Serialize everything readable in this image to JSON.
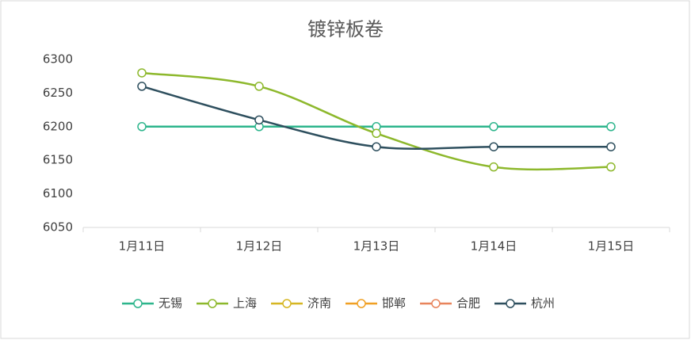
{
  "chart_data": {
    "type": "line",
    "title": "镀锌板卷",
    "categories": [
      "1月11日",
      "1月12日",
      "1月13日",
      "1月14日",
      "1月15日"
    ],
    "series": [
      {
        "name": "无锡",
        "color": "#2db58c",
        "values": [
          6200,
          6200,
          6200,
          6200,
          6200
        ]
      },
      {
        "name": "上海",
        "color": "#8db82c",
        "values": [
          6280,
          6260,
          6190,
          6140,
          6140
        ]
      },
      {
        "name": "济南",
        "color": "#d6b622",
        "values": [
          null,
          null,
          null,
          null,
          null
        ]
      },
      {
        "name": "邯郸",
        "color": "#f0a024",
        "values": [
          null,
          null,
          null,
          null,
          null
        ]
      },
      {
        "name": "合肥",
        "color": "#e8845c",
        "values": [
          null,
          null,
          null,
          null,
          null
        ]
      },
      {
        "name": "杭州",
        "color": "#2e4f5e",
        "values": [
          6260,
          6210,
          6170,
          6170,
          6170
        ]
      }
    ],
    "ylim": [
      6050,
      6300
    ],
    "yticks": [
      6050,
      6100,
      6150,
      6200,
      6250,
      6300
    ],
    "smooth": true,
    "legend": "bottom"
  }
}
